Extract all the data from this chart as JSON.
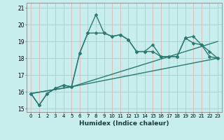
{
  "xlabel": "Humidex (Indice chaleur)",
  "bg_color": "#c8eded",
  "grid_color": "#ddb8b8",
  "line_color": "#2a7a72",
  "xlim": [
    -0.5,
    23.5
  ],
  "ylim": [
    14.8,
    21.3
  ],
  "yticks": [
    15,
    16,
    17,
    18,
    19,
    20,
    21
  ],
  "xticks": [
    0,
    1,
    2,
    3,
    4,
    5,
    6,
    7,
    8,
    9,
    10,
    11,
    12,
    13,
    14,
    15,
    16,
    17,
    18,
    19,
    20,
    21,
    22,
    23
  ],
  "series": [
    {
      "x": [
        0,
        1,
        2,
        3,
        4,
        5,
        6,
        7,
        8,
        9,
        10,
        11,
        12,
        13,
        14,
        15,
        16,
        17,
        18,
        19,
        20,
        21,
        22,
        23
      ],
      "y": [
        15.9,
        15.2,
        15.9,
        16.2,
        16.4,
        16.3,
        18.3,
        19.5,
        20.6,
        19.5,
        19.3,
        19.4,
        19.1,
        18.4,
        18.4,
        18.8,
        18.1,
        18.1,
        18.1,
        19.2,
        18.9,
        18.8,
        18.4,
        18.0
      ],
      "has_markers": true
    },
    {
      "x": [
        0,
        1,
        2,
        3,
        4,
        5,
        6,
        7,
        8,
        9,
        10,
        11,
        12,
        13,
        14,
        15,
        16,
        17,
        18,
        19,
        20,
        21,
        22,
        23
      ],
      "y": [
        15.9,
        15.2,
        15.9,
        16.2,
        16.4,
        16.3,
        18.3,
        19.5,
        19.5,
        19.5,
        19.3,
        19.4,
        19.1,
        18.4,
        18.4,
        18.4,
        18.1,
        18.1,
        18.1,
        19.2,
        19.3,
        18.8,
        18.1,
        18.0
      ],
      "has_markers": true
    },
    {
      "x": [
        0,
        5,
        23
      ],
      "y": [
        15.9,
        16.3,
        18.0
      ],
      "has_markers": false
    },
    {
      "x": [
        0,
        5,
        23
      ],
      "y": [
        15.9,
        16.3,
        19.0
      ],
      "has_markers": false
    }
  ],
  "marker": "D",
  "markersize": 2.5,
  "linewidth": 1.0
}
